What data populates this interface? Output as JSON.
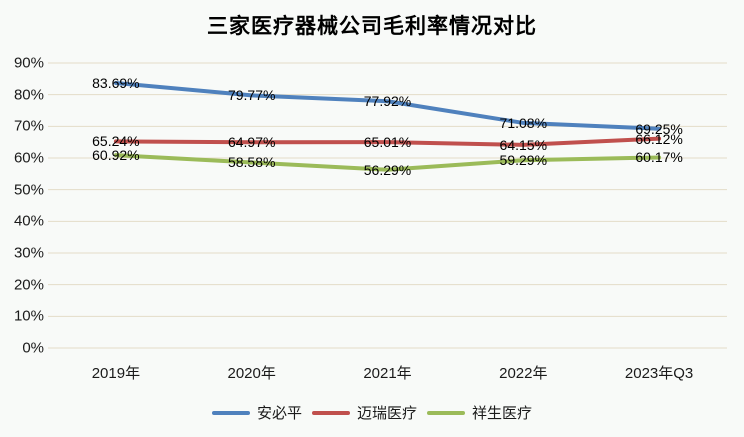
{
  "title": "三家医疗器械公司毛利率情况对比",
  "colors": {
    "background": "#f8faf8",
    "gridline": "#e4dcc8",
    "axis_text": "#1a1a1a",
    "data_label_text": "#000000",
    "series_blue": "#4f81bd",
    "series_red": "#c0504d",
    "series_green": "#9bbb59"
  },
  "chart_data": {
    "type": "line",
    "title": "三家医疗器械公司毛利率情况对比",
    "categories": [
      "2019年",
      "2020年",
      "2021年",
      "2022年",
      "2023年Q3"
    ],
    "series": [
      {
        "name": "安必平",
        "color": "#4f81bd",
        "values": [
          83.69,
          79.77,
          77.92,
          71.08,
          69.25
        ]
      },
      {
        "name": "迈瑞医疗",
        "color": "#c0504d",
        "values": [
          65.24,
          64.97,
          65.01,
          64.15,
          66.12
        ]
      },
      {
        "name": "祥生医疗",
        "color": "#9bbb59",
        "values": [
          60.92,
          58.58,
          56.29,
          59.29,
          60.17
        ]
      }
    ],
    "xlabel": "",
    "ylabel": "",
    "ylim": [
      0,
      90
    ],
    "ytick_step": 10,
    "ytick_suffix": "%",
    "data_label_decimals": 2,
    "data_label_suffix": "%",
    "data_label_position": "center",
    "grid": "horizontal",
    "legend_position": "bottom",
    "line_width": 4
  }
}
